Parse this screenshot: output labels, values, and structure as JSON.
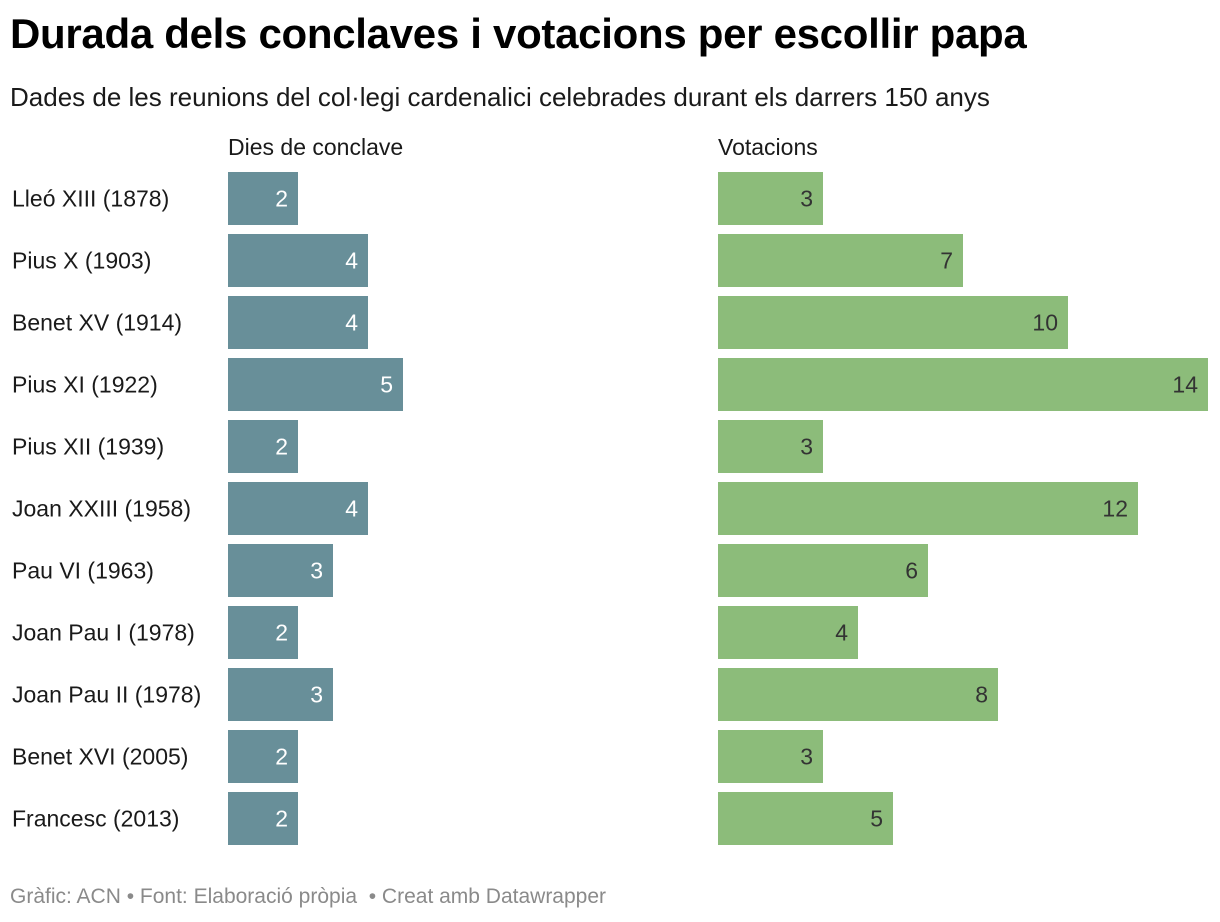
{
  "title": "Durada dels conclaves i votacions per escollir papa",
  "subtitle": "Dades de les reunions del col·legi cardenalici celebrades durant els darrers 150 anys",
  "footer": {
    "credit": "Gràfic: ACN",
    "source": "Font: Elaboració pròpia",
    "tool": "Creat amb Datawrapper",
    "separator": "•"
  },
  "colors": {
    "days_bar": "#688f99",
    "days_label": "#ffffff",
    "votes_bar": "#8cbc7a",
    "votes_label": "#333333"
  },
  "chart_data": {
    "type": "bar",
    "orientation": "horizontal",
    "categories": [
      "Lleó XIII (1878)",
      "Pius X (1903)",
      "Benet XV (1914)",
      "Pius XI (1922)",
      "Pius XII (1939)",
      "Joan XXIII (1958)",
      "Pau VI (1963)",
      "Joan Pau I (1978)",
      "Joan Pau II (1978)",
      "Benet XVI (2005)",
      "Francesc (2013)"
    ],
    "series": [
      {
        "name": "Dies de conclave",
        "values": [
          2,
          4,
          4,
          5,
          2,
          4,
          3,
          2,
          3,
          2,
          2
        ],
        "xlim": [
          0,
          14
        ]
      },
      {
        "name": "Votacions",
        "values": [
          3,
          7,
          10,
          14,
          3,
          12,
          6,
          4,
          8,
          3,
          5
        ],
        "xlim": [
          0,
          14
        ]
      }
    ]
  }
}
